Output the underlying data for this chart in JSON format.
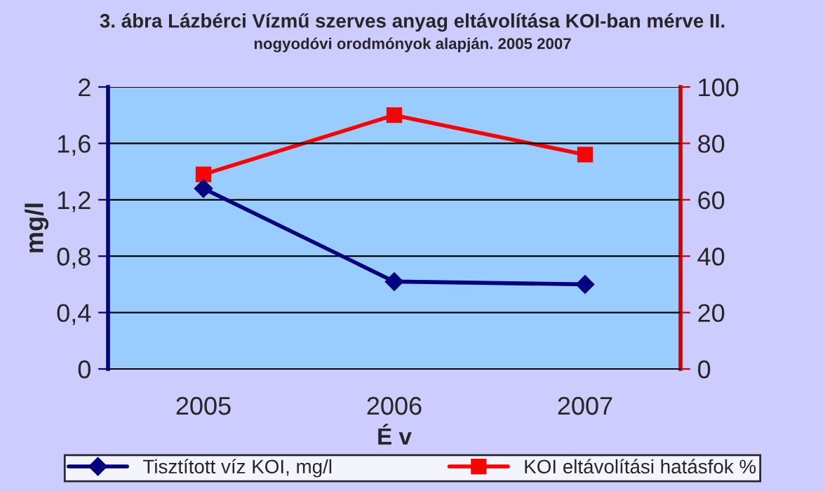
{
  "chart_data": {
    "type": "line",
    "title": "3. ábra Lázbérci Vízmű szerves anyag eltávolítása KOI-ban mérve II.",
    "subtitle": "nogyodóvi orodmónyok alapján. 2005 2007",
    "xlabel": "É v",
    "ylabel": "mg/l",
    "categories": [
      "2005",
      "2006",
      "2007"
    ],
    "series": [
      {
        "name": "Tisztított víz KOI, mg/l",
        "color": "#000080",
        "values": [
          1.28,
          0.62,
          0.6
        ],
        "marker": "diamond"
      },
      {
        "name": "KOI eltávolítási hatásfok %",
        "color": "#ff0000",
        "values": [
          69,
          90,
          76
        ],
        "axis": "y2",
        "marker": "square"
      }
    ],
    "ylim": [
      0,
      2
    ],
    "yticks": [
      0,
      {
        "value": 0.4,
        "label": "0,4"
      },
      {
        "value": 0.8,
        "label": "0,8"
      },
      {
        "value": 1.2,
        "label": "1,2"
      },
      {
        "value": 1.6,
        "label": "1,6"
      },
      2
    ],
    "y2lim": [
      0,
      100
    ],
    "y2ticks": [
      0,
      20,
      40,
      60,
      80,
      100
    ],
    "grid": "y",
    "legend": "bottom",
    "line_style": "solid"
  }
}
